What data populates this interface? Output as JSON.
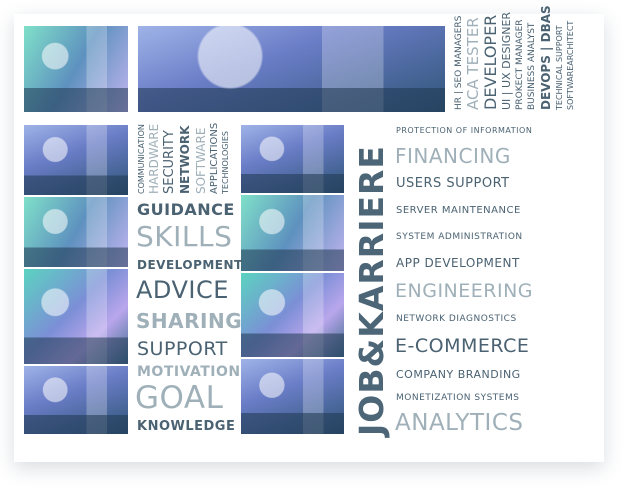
{
  "top_right_words": [
    "HR | SEO MANAGERS",
    "ACA TESTER",
    "DEVELOPER",
    "UI | UX DESIGNER",
    "PROKECT MANAGER",
    "BUSINESS ANALYST",
    "DEVOPS | DBAS",
    "TECHNICAL SUPPORT",
    "SOFTWAREARCHITECT"
  ],
  "middle_vertical_words": [
    "COMMUNICATION",
    "HARDWARE",
    "SECURITY",
    "NETWORK",
    "SOFTWARE",
    "APPLICATIONS",
    "TECHNOLOGIES"
  ],
  "middle_words": [
    "GUIDANCE",
    "SKILLS",
    "DEVELOPMENT",
    "ADVICE",
    "SHARING",
    "SUPPORT",
    "MOTIVATION",
    "GOAL",
    "KNOWLEDGE"
  ],
  "brand_title": "JOB&KARRIERE",
  "right_words": [
    "PROTECTION OF INFORMATION",
    "FINANCING",
    "USERS SUPPORT",
    "SERVER MAINTENANCE",
    "SYSTEM ADMINISTRATION",
    "APP DEVELOPMENT",
    "ENGINEERING",
    "NETWORK DIAGNOSTICS",
    "E-COMMERCE",
    "COMPANY BRANDING",
    "MONETIZATION SYSTEMS",
    "ANALYTICS"
  ],
  "colors": {
    "dark_text": "#4a6272",
    "light_text": "#9fb0b9",
    "brand": "#4d6677"
  }
}
